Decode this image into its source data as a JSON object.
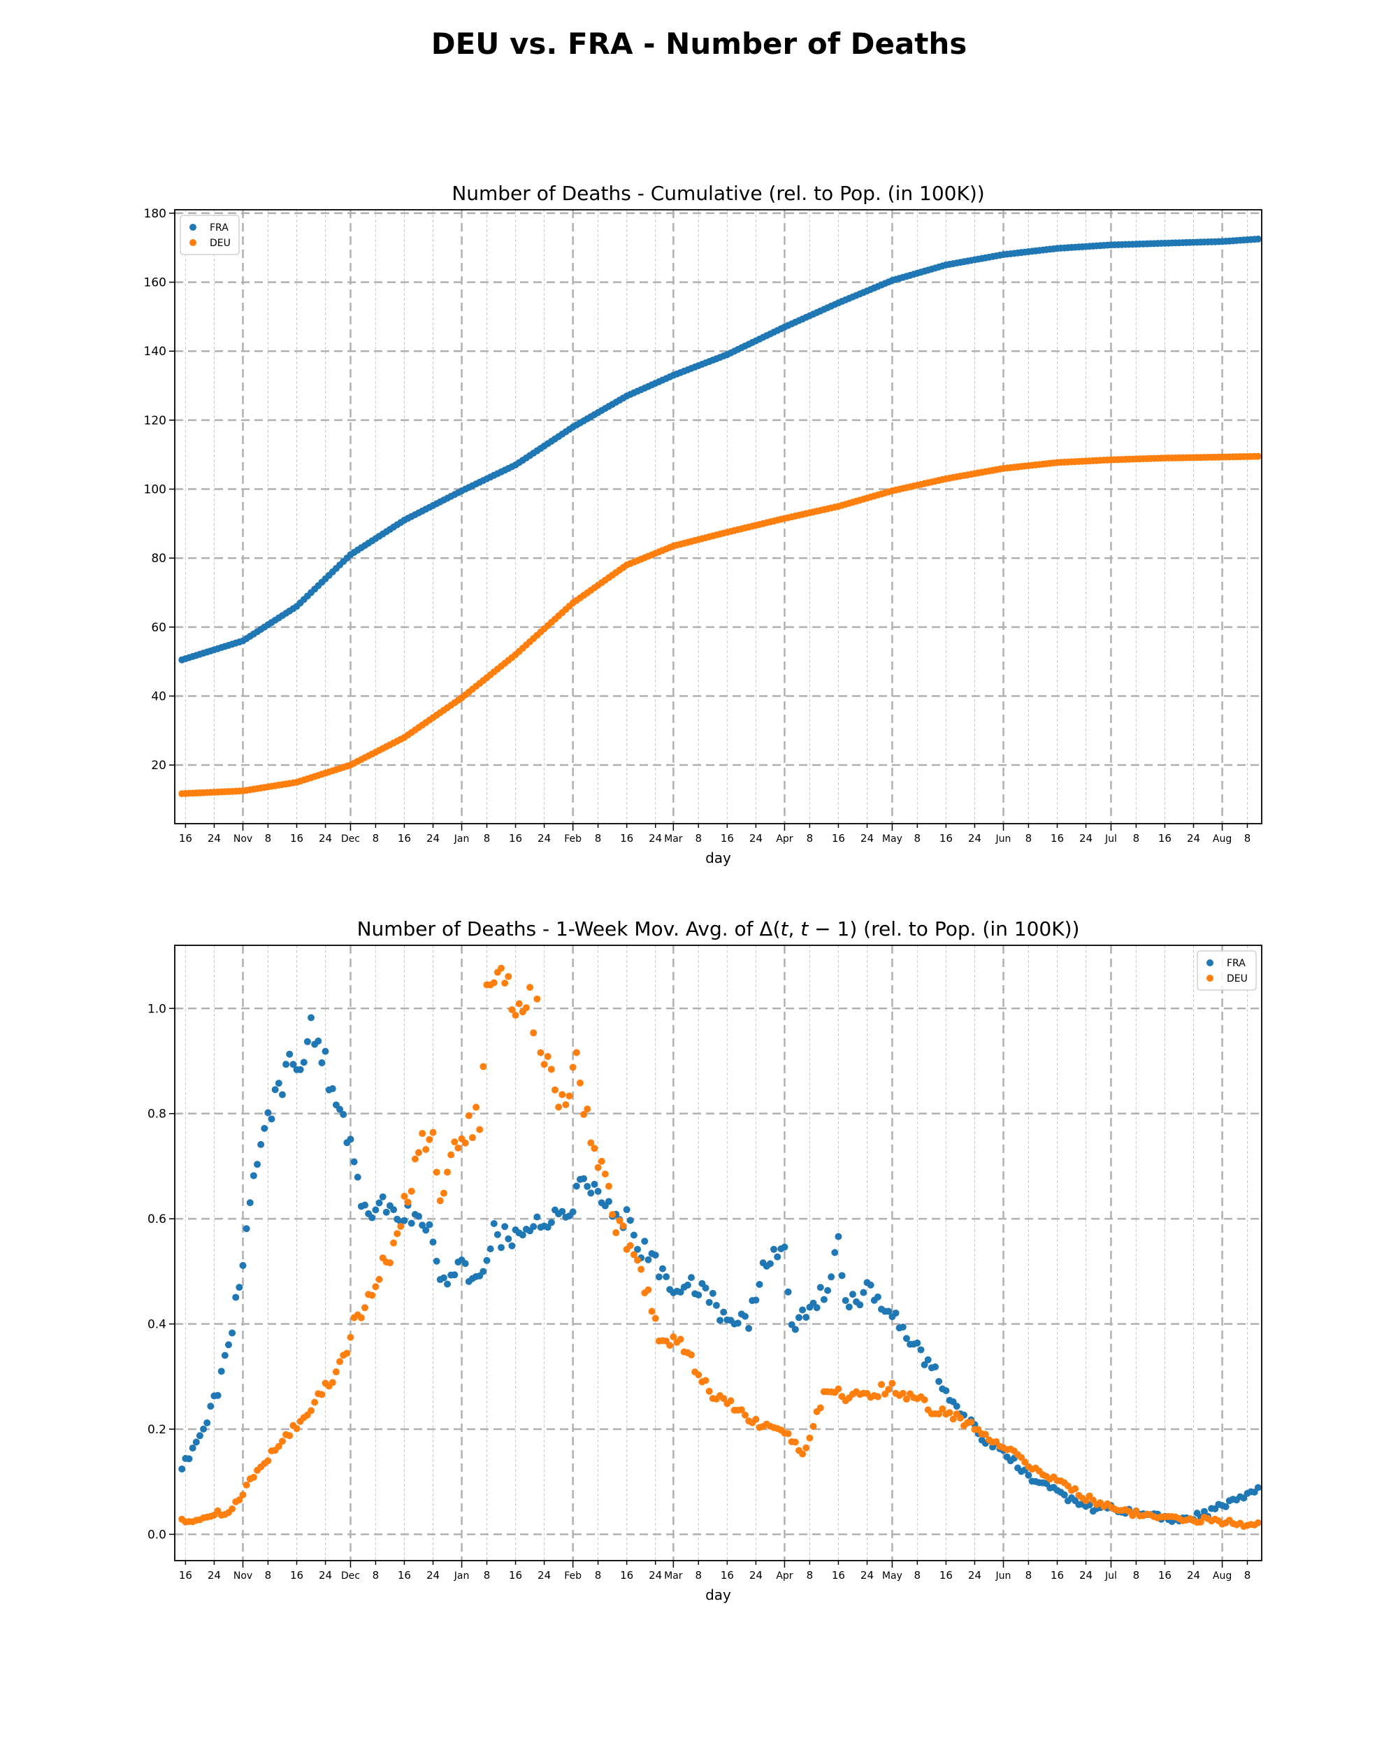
{
  "figure_title": "DEU vs. FRA - Number of Deaths",
  "colors": {
    "FRA": "#1f77b4",
    "DEU": "#ff7f0e",
    "grid_major": "#b0b0b0",
    "grid_minor": "#c8c8c8"
  },
  "x_ticks": {
    "labels": [
      "16",
      "24",
      "Nov",
      "8",
      "16",
      "24",
      "Dec",
      "8",
      "16",
      "24",
      "Jan",
      "8",
      "16",
      "24",
      "Feb",
      "8",
      "16",
      "24",
      "Mar",
      "8",
      "16",
      "24",
      "Apr",
      "8",
      "16",
      "24",
      "May",
      "8",
      "16",
      "24",
      "Jun",
      "8",
      "16",
      "24",
      "Jul",
      "8",
      "16",
      "24",
      "Aug",
      "8"
    ],
    "dates": [
      "2020-10-16",
      "2020-10-24",
      "2020-11-01",
      "2020-11-08",
      "2020-11-16",
      "2020-11-24",
      "2020-12-01",
      "2020-12-08",
      "2020-12-16",
      "2020-12-24",
      "2021-01-01",
      "2021-01-08",
      "2021-01-16",
      "2021-01-24",
      "2021-02-01",
      "2021-02-08",
      "2021-02-16",
      "2021-02-24",
      "2021-03-01",
      "2021-03-08",
      "2021-03-16",
      "2021-03-24",
      "2021-04-01",
      "2021-04-08",
      "2021-04-16",
      "2021-04-24",
      "2021-05-01",
      "2021-05-08",
      "2021-05-16",
      "2021-05-24",
      "2021-06-01",
      "2021-06-08",
      "2021-06-16",
      "2021-06-24",
      "2021-07-01",
      "2021-07-08",
      "2021-07-16",
      "2021-07-24",
      "2021-08-01",
      "2021-08-08"
    ]
  },
  "chart_data": [
    {
      "type": "scatter",
      "title": "Number of Deaths - Cumulative (rel. to Pop. (in 100K))",
      "xlabel": "day",
      "ylabel": "",
      "xlim": [
        "2020-10-13",
        "2021-08-12"
      ],
      "ylim": [
        3,
        181
      ],
      "yticks": [
        20,
        40,
        60,
        80,
        100,
        120,
        140,
        160,
        180
      ],
      "ytick_labels": [
        "20",
        "40",
        "60",
        "80",
        "100",
        "120",
        "140",
        "160",
        "180"
      ],
      "grid": true,
      "legend": {
        "position": "top-left",
        "entries": [
          "FRA",
          "DEU"
        ]
      },
      "x_start": "2020-10-15",
      "x_end": "2021-08-11",
      "series": [
        {
          "name": "FRA",
          "color": "#1f77b4",
          "keypoints": [
            [
              "2020-10-15",
              50.5
            ],
            [
              "2020-11-01",
              56
            ],
            [
              "2020-11-16",
              66
            ],
            [
              "2020-12-01",
              81
            ],
            [
              "2020-12-16",
              91
            ],
            [
              "2021-01-01",
              99.5
            ],
            [
              "2021-01-16",
              107
            ],
            [
              "2021-02-01",
              118
            ],
            [
              "2021-02-16",
              127
            ],
            [
              "2021-03-01",
              133
            ],
            [
              "2021-03-16",
              139
            ],
            [
              "2021-04-01",
              147
            ],
            [
              "2021-04-16",
              154
            ],
            [
              "2021-05-01",
              160.5
            ],
            [
              "2021-05-16",
              165
            ],
            [
              "2021-06-01",
              168
            ],
            [
              "2021-06-16",
              169.8
            ],
            [
              "2021-07-01",
              170.8
            ],
            [
              "2021-07-16",
              171.3
            ],
            [
              "2021-08-01",
              171.8
            ],
            [
              "2021-08-11",
              172.5
            ]
          ]
        },
        {
          "name": "DEU",
          "color": "#ff7f0e",
          "keypoints": [
            [
              "2020-10-15",
              11.7
            ],
            [
              "2020-11-01",
              12.5
            ],
            [
              "2020-11-16",
              15
            ],
            [
              "2020-12-01",
              20
            ],
            [
              "2020-12-16",
              28
            ],
            [
              "2021-01-01",
              39.5
            ],
            [
              "2021-01-16",
              52
            ],
            [
              "2021-02-01",
              67
            ],
            [
              "2021-02-16",
              78
            ],
            [
              "2021-03-01",
              83.5
            ],
            [
              "2021-03-16",
              87.5
            ],
            [
              "2021-04-01",
              91.5
            ],
            [
              "2021-04-16",
              95
            ],
            [
              "2021-05-01",
              99.5
            ],
            [
              "2021-05-16",
              103
            ],
            [
              "2021-06-01",
              106
            ],
            [
              "2021-06-16",
              107.7
            ],
            [
              "2021-07-01",
              108.5
            ],
            [
              "2021-07-16",
              109
            ],
            [
              "2021-08-01",
              109.3
            ],
            [
              "2021-08-11",
              109.5
            ]
          ]
        }
      ]
    },
    {
      "type": "scatter",
      "title": "Number of Deaths - 1-Week Mov. Avg. of Δ(t, t − 1) (rel. to Pop. (in 100K))",
      "title_parts": [
        "Number of Deaths - 1-Week Mov. Avg. of Δ(",
        "t",
        ", ",
        "t",
        " − 1) (rel. to Pop. (in 100K))"
      ],
      "xlabel": "day",
      "ylabel": "",
      "xlim": [
        "2020-10-13",
        "2021-08-12"
      ],
      "ylim": [
        -0.05,
        1.12
      ],
      "yticks": [
        0.0,
        0.2,
        0.4,
        0.6,
        0.8,
        1.0
      ],
      "ytick_labels": [
        "0.0",
        "0.2",
        "0.4",
        "0.6",
        "0.8",
        "1.0"
      ],
      "grid": true,
      "legend": {
        "position": "top-right",
        "entries": [
          "FRA",
          "DEU"
        ]
      },
      "x_start": "2020-10-15",
      "x_end": "2021-08-11",
      "series": [
        {
          "name": "FRA",
          "color": "#1f77b4",
          "keypoints": [
            [
              "2020-10-15",
              0.13
            ],
            [
              "2020-10-20",
              0.18
            ],
            [
              "2020-10-25",
              0.27
            ],
            [
              "2020-10-29",
              0.4
            ],
            [
              "2020-11-01",
              0.53
            ],
            [
              "2020-11-04",
              0.67
            ],
            [
              "2020-11-08",
              0.78
            ],
            [
              "2020-11-12",
              0.87
            ],
            [
              "2020-11-16",
              0.9
            ],
            [
              "2020-11-20",
              0.96
            ],
            [
              "2020-11-24",
              0.9
            ],
            [
              "2020-11-27",
              0.82
            ],
            [
              "2020-12-01",
              0.72
            ],
            [
              "2020-12-04",
              0.62
            ],
            [
              "2020-12-12",
              0.62
            ],
            [
              "2020-12-20",
              0.59
            ],
            [
              "2020-12-24",
              0.57
            ],
            [
              "2020-12-26",
              0.48
            ],
            [
              "2021-01-01",
              0.5
            ],
            [
              "2021-01-06",
              0.48
            ],
            [
              "2021-01-10",
              0.59
            ],
            [
              "2021-01-14",
              0.55
            ],
            [
              "2021-01-20",
              0.57
            ],
            [
              "2021-01-26",
              0.61
            ],
            [
              "2021-01-30",
              0.62
            ],
            [
              "2021-02-05",
              0.66
            ],
            [
              "2021-02-10",
              0.64
            ],
            [
              "2021-02-15",
              0.61
            ],
            [
              "2021-02-20",
              0.55
            ],
            [
              "2021-02-28",
              0.48
            ],
            [
              "2021-03-05",
              0.48
            ],
            [
              "2021-03-12",
              0.44
            ],
            [
              "2021-03-16",
              0.4
            ],
            [
              "2021-03-22",
              0.41
            ],
            [
              "2021-03-26",
              0.51
            ],
            [
              "2021-04-01",
              0.56
            ],
            [
              "2021-04-03",
              0.4
            ],
            [
              "2021-04-07",
              0.43
            ],
            [
              "2021-04-12",
              0.46
            ],
            [
              "2021-04-16",
              0.55
            ],
            [
              "2021-04-18",
              0.44
            ],
            [
              "2021-04-24",
              0.46
            ],
            [
              "2021-05-01",
              0.43
            ],
            [
              "2021-05-08",
              0.35
            ],
            [
              "2021-05-14",
              0.3
            ],
            [
              "2021-05-20",
              0.23
            ],
            [
              "2021-05-27",
              0.18
            ],
            [
              "2021-06-01",
              0.16
            ],
            [
              "2021-06-08",
              0.11
            ],
            [
              "2021-06-16",
              0.08
            ],
            [
              "2021-06-24",
              0.05
            ],
            [
              "2021-07-01",
              0.05
            ],
            [
              "2021-07-08",
              0.04
            ],
            [
              "2021-07-16",
              0.03
            ],
            [
              "2021-07-22",
              0.03
            ],
            [
              "2021-07-28",
              0.04
            ],
            [
              "2021-08-01",
              0.055
            ],
            [
              "2021-08-06",
              0.07
            ],
            [
              "2021-08-11",
              0.085
            ]
          ]
        },
        {
          "name": "DEU",
          "color": "#ff7f0e",
          "keypoints": [
            [
              "2020-10-15",
              0.025
            ],
            [
              "2020-10-22",
              0.033
            ],
            [
              "2020-10-28",
              0.045
            ],
            [
              "2020-11-01",
              0.08
            ],
            [
              "2020-11-05",
              0.12
            ],
            [
              "2020-11-10",
              0.16
            ],
            [
              "2020-11-16",
              0.21
            ],
            [
              "2020-11-22",
              0.26
            ],
            [
              "2020-11-28",
              0.32
            ],
            [
              "2020-12-01",
              0.38
            ],
            [
              "2020-12-06",
              0.46
            ],
            [
              "2020-12-12",
              0.53
            ],
            [
              "2020-12-16",
              0.62
            ],
            [
              "2020-12-20",
              0.73
            ],
            [
              "2020-12-24",
              0.79
            ],
            [
              "2020-12-26",
              0.65
            ],
            [
              "2021-01-01",
              0.77
            ],
            [
              "2021-01-06",
              0.78
            ],
            [
              "2021-01-08",
              1.0
            ],
            [
              "2021-01-12",
              1.05
            ],
            [
              "2021-01-16",
              1.02
            ],
            [
              "2021-01-20",
              1.02
            ],
            [
              "2021-01-24",
              0.93
            ],
            [
              "2021-01-28",
              0.78
            ],
            [
              "2021-02-02",
              0.9
            ],
            [
              "2021-02-06",
              0.77
            ],
            [
              "2021-02-10",
              0.66
            ],
            [
              "2021-02-14",
              0.58
            ],
            [
              "2021-02-20",
              0.5
            ],
            [
              "2021-02-25",
              0.38
            ],
            [
              "2021-03-04",
              0.36
            ],
            [
              "2021-03-10",
              0.28
            ],
            [
              "2021-03-16",
              0.25
            ],
            [
              "2021-03-22",
              0.22
            ],
            [
              "2021-03-28",
              0.2
            ],
            [
              "2021-04-03",
              0.18
            ],
            [
              "2021-04-06",
              0.15
            ],
            [
              "2021-04-10",
              0.23
            ],
            [
              "2021-04-13",
              0.28
            ],
            [
              "2021-04-18",
              0.26
            ],
            [
              "2021-04-24",
              0.27
            ],
            [
              "2021-05-01",
              0.275
            ],
            [
              "2021-05-08",
              0.26
            ],
            [
              "2021-05-14",
              0.23
            ],
            [
              "2021-05-20",
              0.22
            ],
            [
              "2021-05-27",
              0.19
            ],
            [
              "2021-06-01",
              0.17
            ],
            [
              "2021-06-08",
              0.13
            ],
            [
              "2021-06-16",
              0.1
            ],
            [
              "2021-06-24",
              0.07
            ],
            [
              "2021-07-01",
              0.05
            ],
            [
              "2021-07-08",
              0.04
            ],
            [
              "2021-07-16",
              0.03
            ],
            [
              "2021-07-22",
              0.025
            ],
            [
              "2021-07-28",
              0.028
            ],
            [
              "2021-08-01",
              0.025
            ],
            [
              "2021-08-06",
              0.02
            ],
            [
              "2021-08-11",
              0.02
            ]
          ]
        }
      ]
    }
  ]
}
